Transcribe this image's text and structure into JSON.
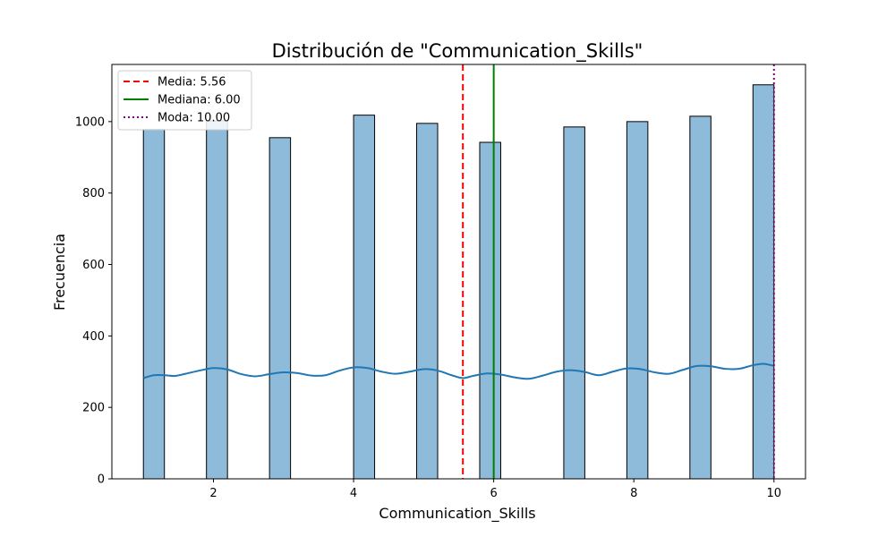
{
  "chart_data": {
    "type": "bar",
    "title": "Distribución de \"Communication_Skills\"",
    "xlabel": "Communication_Skills",
    "ylabel": "Frecuencia",
    "xlim": [
      0.55,
      10.45
    ],
    "ylim": [
      0,
      1160
    ],
    "x_ticks": [
      2,
      4,
      6,
      8,
      10
    ],
    "x_tick_labels": [
      "2",
      "4",
      "6",
      "8",
      "10"
    ],
    "y_ticks": [
      0,
      200,
      400,
      600,
      800,
      1000
    ],
    "y_tick_labels": [
      "0",
      "200",
      "400",
      "600",
      "800",
      "1000"
    ],
    "grid": false,
    "legend_position": "top-left",
    "bar_color": "#8fbbda",
    "bar_edge_color": "#000000",
    "bins": [
      {
        "x0": 1.0,
        "x1": 1.3,
        "count": 978
      },
      {
        "x0": 1.9,
        "x1": 2.2,
        "count": 1002
      },
      {
        "x0": 2.8,
        "x1": 3.1,
        "count": 955
      },
      {
        "x0": 4.0,
        "x1": 4.3,
        "count": 1018
      },
      {
        "x0": 4.9,
        "x1": 5.2,
        "count": 995
      },
      {
        "x0": 5.8,
        "x1": 6.1,
        "count": 942
      },
      {
        "x0": 7.0,
        "x1": 7.3,
        "count": 985
      },
      {
        "x0": 7.9,
        "x1": 8.2,
        "count": 1000
      },
      {
        "x0": 8.8,
        "x1": 9.1,
        "count": 1015
      },
      {
        "x0": 9.7,
        "x1": 10.0,
        "count": 1103
      }
    ],
    "kde": {
      "color": "#1f77b4",
      "points": [
        [
          1.0,
          282
        ],
        [
          1.15,
          290
        ],
        [
          1.3,
          290
        ],
        [
          1.45,
          288
        ],
        [
          1.6,
          294
        ],
        [
          1.8,
          303
        ],
        [
          2.0,
          310
        ],
        [
          2.2,
          306
        ],
        [
          2.4,
          293
        ],
        [
          2.6,
          287
        ],
        [
          2.8,
          293
        ],
        [
          3.0,
          298
        ],
        [
          3.2,
          296
        ],
        [
          3.4,
          289
        ],
        [
          3.6,
          290
        ],
        [
          3.8,
          303
        ],
        [
          4.0,
          312
        ],
        [
          4.2,
          310
        ],
        [
          4.4,
          300
        ],
        [
          4.6,
          294
        ],
        [
          4.8,
          300
        ],
        [
          5.0,
          307
        ],
        [
          5.2,
          303
        ],
        [
          5.4,
          290
        ],
        [
          5.56,
          282
        ],
        [
          5.7,
          288
        ],
        [
          5.9,
          295
        ],
        [
          6.1,
          292
        ],
        [
          6.3,
          284
        ],
        [
          6.5,
          280
        ],
        [
          6.7,
          289
        ],
        [
          6.9,
          300
        ],
        [
          7.1,
          304
        ],
        [
          7.3,
          299
        ],
        [
          7.5,
          290
        ],
        [
          7.7,
          300
        ],
        [
          7.9,
          309
        ],
        [
          8.1,
          307
        ],
        [
          8.3,
          298
        ],
        [
          8.5,
          294
        ],
        [
          8.7,
          305
        ],
        [
          8.9,
          316
        ],
        [
          9.1,
          315
        ],
        [
          9.3,
          308
        ],
        [
          9.5,
          308
        ],
        [
          9.7,
          318
        ],
        [
          9.85,
          322
        ],
        [
          10.0,
          316
        ]
      ]
    },
    "reference_lines": [
      {
        "label": "Media: 5.56",
        "x": 5.56,
        "color": "#ff0000",
        "style": "dashed"
      },
      {
        "label": "Mediana: 6.00",
        "x": 6.0,
        "color": "#008000",
        "style": "solid"
      },
      {
        "label": "Moda: 10.00",
        "x": 10.0,
        "color": "#800080",
        "style": "dotted"
      }
    ]
  }
}
